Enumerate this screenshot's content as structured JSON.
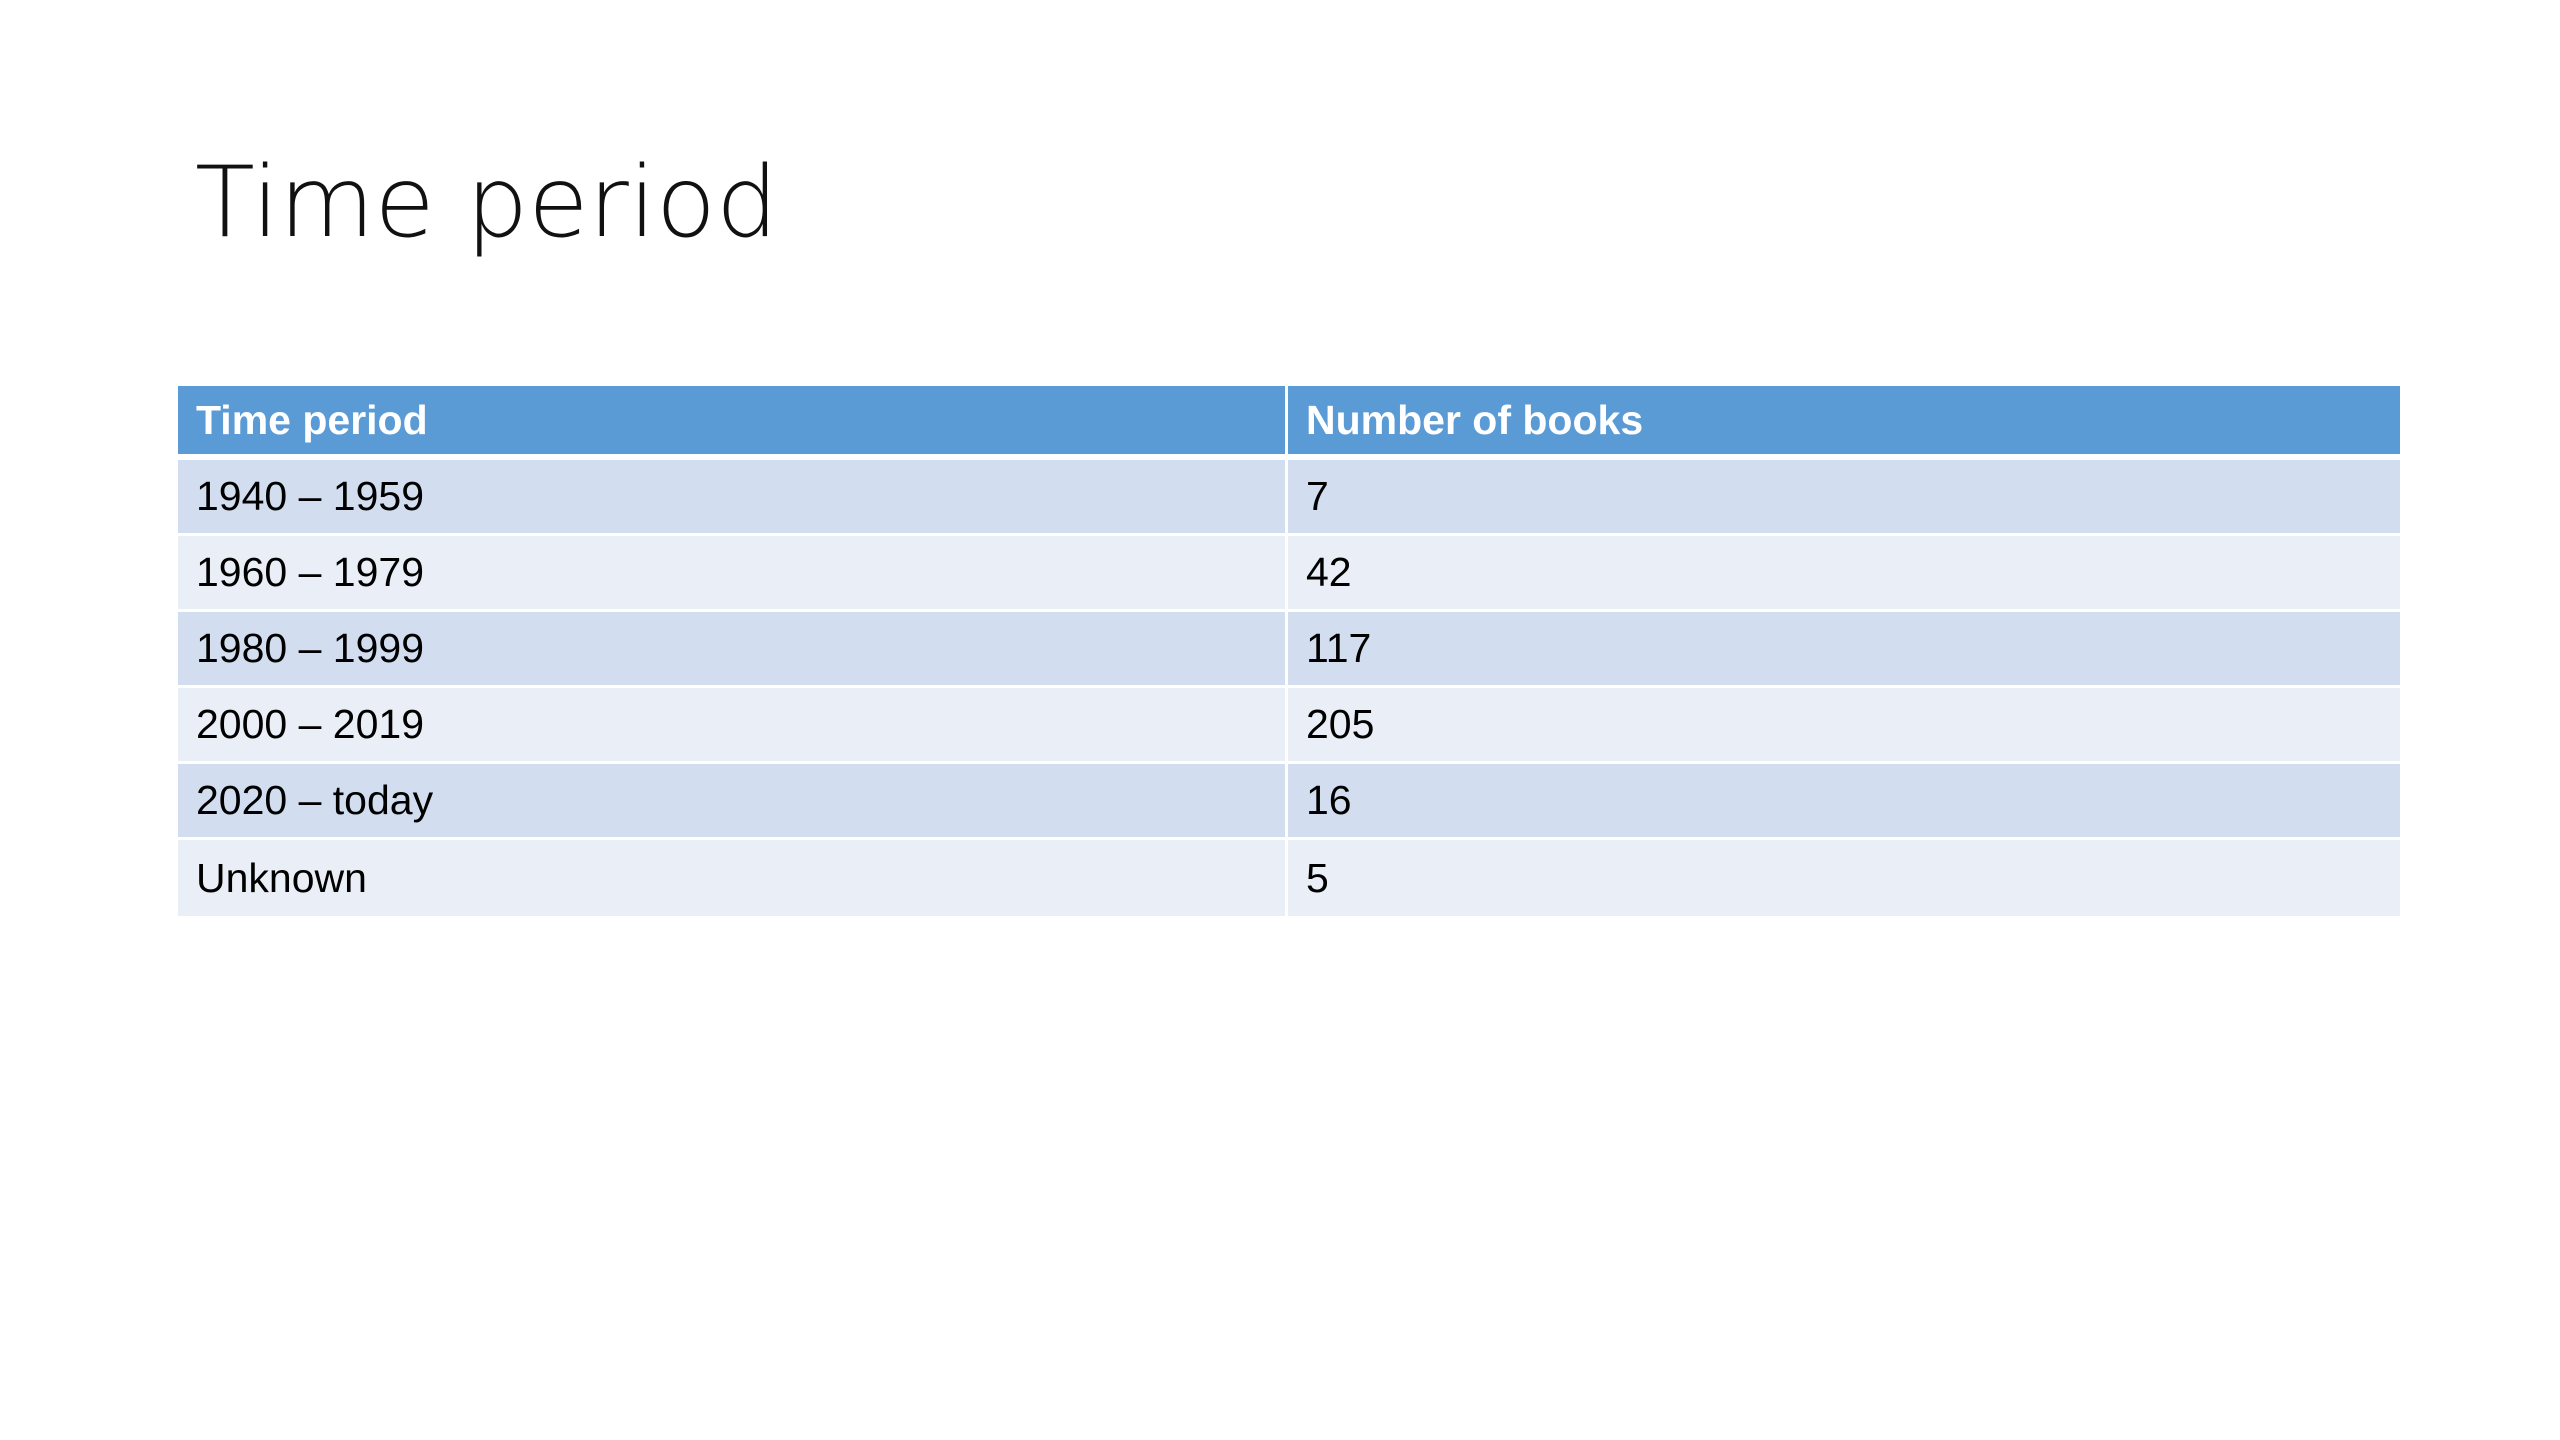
{
  "slide": {
    "title": "Time period"
  },
  "table": {
    "headers": [
      "Time period",
      "Number of books"
    ],
    "rows": [
      [
        "1940 – 1959",
        "7"
      ],
      [
        "1960 – 1979",
        "42"
      ],
      [
        "1980 – 1999",
        "117"
      ],
      [
        "2000 – 2019",
        "205"
      ],
      [
        "2020 – today",
        "16"
      ],
      [
        "Unknown",
        "5"
      ]
    ]
  },
  "colors": {
    "header_background": "#5b9bd5",
    "row_band_dark": "#d2deef",
    "row_band_light": "#eaeff7"
  }
}
